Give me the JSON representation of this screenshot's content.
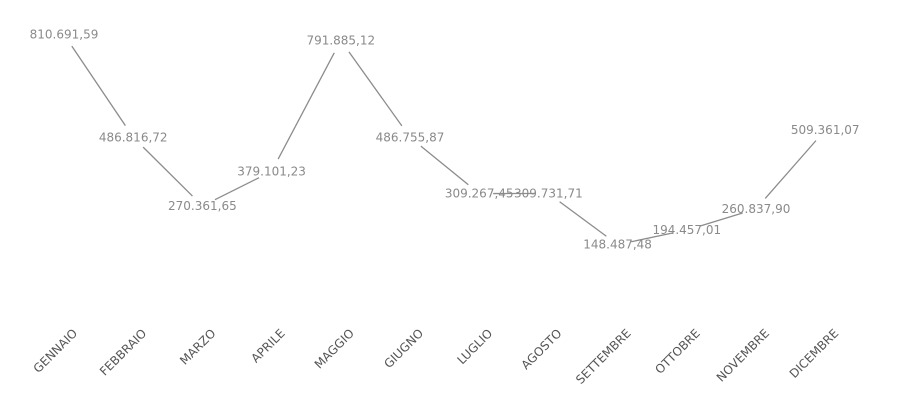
{
  "chart_data": {
    "type": "line",
    "categories": [
      "GENNAIO",
      "FEBBRAIO",
      "MARZO",
      "APRILE",
      "MAGGIO",
      "GIUGNO",
      "LUGLIO",
      "AGOSTO",
      "SETTEMBRE",
      "OTTOBRE",
      "NOVEMBRE",
      "DICEMBRE"
    ],
    "values": [
      810691.59,
      486816.72,
      270361.65,
      379101.23,
      791885.12,
      486755.87,
      309267.45,
      309731.71,
      148487.48,
      194457.01,
      260837.9,
      509361.07
    ],
    "data_labels": [
      "810.691,59",
      "486.816,72",
      "270.361,65",
      "379.101,23",
      "791.885,12",
      "486.755,87",
      "309.267,45",
      "309.731,71",
      "148.487,48",
      "194.457,01",
      "260.837,90",
      "509.361,07"
    ],
    "title": "",
    "xlabel": "",
    "ylabel": "",
    "ylim": [
      100000,
      850000
    ],
    "grid": false,
    "legend": "none",
    "line_color": "#8c8c8c",
    "label_color": "#8a8a8a"
  }
}
